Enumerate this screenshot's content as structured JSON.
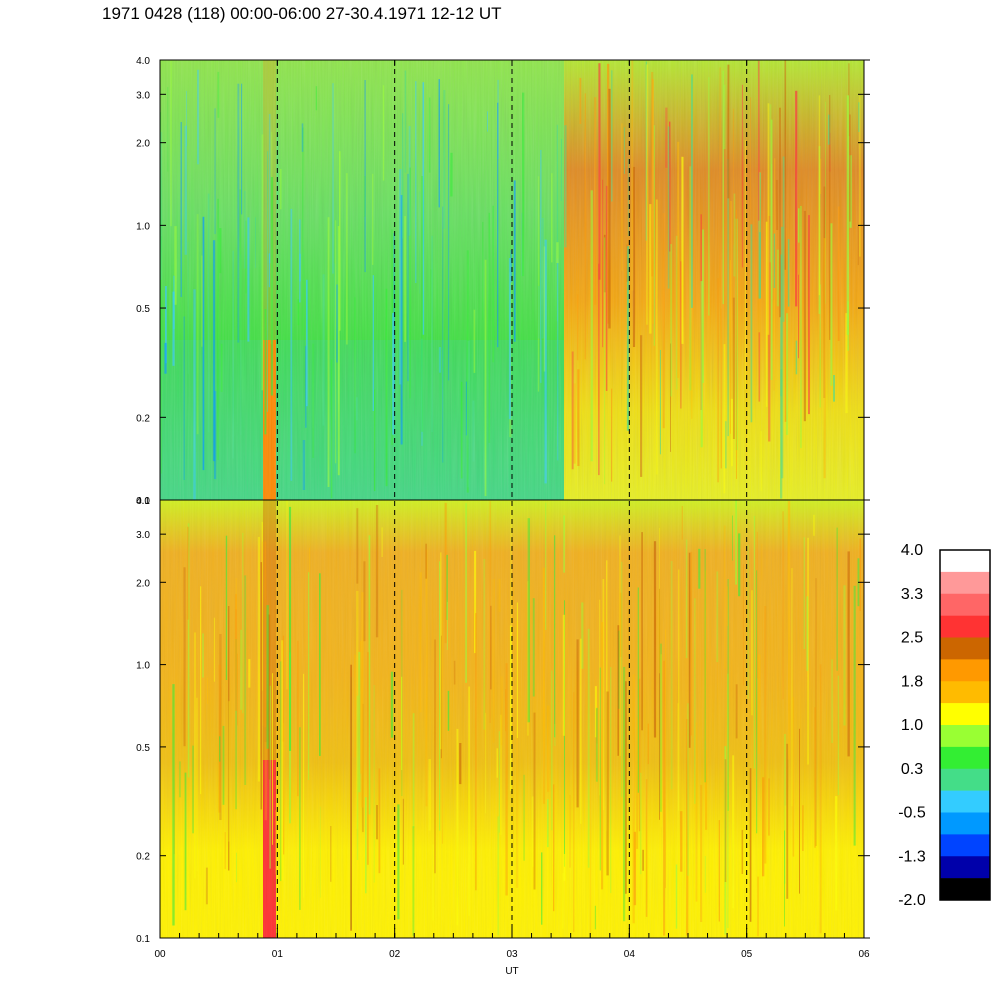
{
  "title": "1971 0428 (118) 00:00-06:00 27-30.4.1971  12-12 UT",
  "chart_data": {
    "type": "heatmap",
    "xlabel": "UT",
    "x_ticks": [
      "00",
      "01",
      "02",
      "03",
      "04",
      "05",
      "06"
    ],
    "xlim": [
      0,
      6
    ],
    "panels": [
      {
        "name": "top",
        "ylim": [
          0.1,
          4.0
        ],
        "yscale": "log",
        "y_ticks": [
          4.0,
          3.0,
          2.0,
          1.0,
          0.5,
          0.2,
          0.1
        ],
        "y_tick_labels": [
          "4.0",
          "3.0",
          "2.0",
          "1.0",
          "0.5",
          "0.2",
          "0.1"
        ]
      },
      {
        "name": "bottom",
        "ylim": [
          0.1,
          4.0
        ],
        "yscale": "log",
        "y_ticks": [
          4.0,
          3.0,
          2.0,
          1.0,
          0.5,
          0.2,
          0.1
        ],
        "y_tick_labels": [
          "4.0",
          "3.0",
          "2.0",
          "1.0",
          "0.5",
          "0.2",
          "0.1"
        ]
      }
    ],
    "dashed_vlines": [
      1,
      2,
      3,
      4,
      5
    ],
    "colorbar": {
      "labels": [
        "4.0",
        "3.3",
        "2.5",
        "1.8",
        "1.0",
        "0.3",
        "-0.5",
        "-1.3",
        "-2.0"
      ],
      "colors": [
        "#ffffff",
        "#ff9999",
        "#ff6666",
        "#ff3333",
        "#cc6600",
        "#ff9900",
        "#ffbb00",
        "#ffff00",
        "#99ff33",
        "#33ee33",
        "#44dd88",
        "#33ccff",
        "#0099ff",
        "#0044ff",
        "#0000aa",
        "#000000"
      ]
    }
  }
}
